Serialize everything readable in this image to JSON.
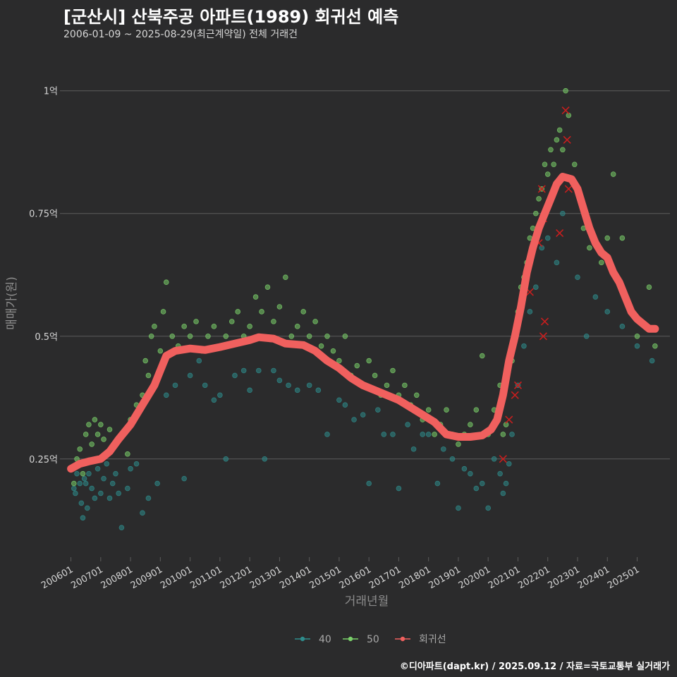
{
  "title": "[군산시] 산북주공 아파트(1989) 회귀선 예측",
  "subtitle": "2006-01-09 ~ 2025-08-29(최근계약일) 전체 거래건",
  "caption": "©디아파트(dapt.kr) / 2025.09.12 / 자료=국토교통부 실거래가",
  "colors": {
    "background": "#2b2b2c",
    "grid": "#5c5c5c",
    "series_40": "#2e8c8c",
    "series_50": "#7ad06a",
    "regression": "#f0605e",
    "highlight_x": "#c81e1e"
  },
  "chart_data": {
    "type": "scatter",
    "xlabel": "거래년월",
    "ylabel": "매매가(원)",
    "xlim": [
      2005.75,
      2026.1
    ],
    "ylim": [
      0.05,
      1.07
    ],
    "y_unit": "억",
    "grid": "horizontal",
    "legend_position": "bottom",
    "y_ticks": [
      {
        "value": 0.25,
        "label": "0.25억"
      },
      {
        "value": 0.5,
        "label": "0.5억"
      },
      {
        "value": 0.75,
        "label": "0.75억"
      },
      {
        "value": 1.0,
        "label": "1억"
      }
    ],
    "x_ticks": [
      "200601",
      "200701",
      "200801",
      "200901",
      "201001",
      "201101",
      "201201",
      "201301",
      "201401",
      "201501",
      "201601",
      "201701",
      "201801",
      "201901",
      "202001",
      "202101",
      "202201",
      "202301",
      "202401",
      "202501"
    ],
    "series": [
      {
        "name": "40",
        "type": "scatter",
        "points": [
          [
            2006.1,
            0.19
          ],
          [
            2006.15,
            0.18
          ],
          [
            2006.2,
            0.22
          ],
          [
            2006.3,
            0.2
          ],
          [
            2006.35,
            0.16
          ],
          [
            2006.4,
            0.13
          ],
          [
            2006.45,
            0.21
          ],
          [
            2006.5,
            0.2
          ],
          [
            2006.55,
            0.15
          ],
          [
            2006.6,
            0.22
          ],
          [
            2006.7,
            0.19
          ],
          [
            2006.8,
            0.17
          ],
          [
            2006.9,
            0.23
          ],
          [
            2007.0,
            0.18
          ],
          [
            2007.1,
            0.21
          ],
          [
            2007.2,
            0.24
          ],
          [
            2007.3,
            0.17
          ],
          [
            2007.4,
            0.2
          ],
          [
            2007.5,
            0.22
          ],
          [
            2007.6,
            0.18
          ],
          [
            2007.7,
            0.11
          ],
          [
            2007.9,
            0.19
          ],
          [
            2008.0,
            0.23
          ],
          [
            2008.2,
            0.24
          ],
          [
            2008.4,
            0.14
          ],
          [
            2008.6,
            0.17
          ],
          [
            2008.9,
            0.2
          ],
          [
            2009.2,
            0.38
          ],
          [
            2009.5,
            0.4
          ],
          [
            2009.8,
            0.21
          ],
          [
            2010.0,
            0.42
          ],
          [
            2010.3,
            0.45
          ],
          [
            2010.5,
            0.4
          ],
          [
            2010.8,
            0.37
          ],
          [
            2011.0,
            0.38
          ],
          [
            2011.2,
            0.25
          ],
          [
            2011.5,
            0.42
          ],
          [
            2011.8,
            0.43
          ],
          [
            2012.0,
            0.39
          ],
          [
            2012.3,
            0.43
          ],
          [
            2012.5,
            0.25
          ],
          [
            2012.8,
            0.43
          ],
          [
            2013.0,
            0.41
          ],
          [
            2013.3,
            0.4
          ],
          [
            2013.6,
            0.39
          ],
          [
            2014.0,
            0.4
          ],
          [
            2014.3,
            0.39
          ],
          [
            2014.6,
            0.3
          ],
          [
            2015.0,
            0.37
          ],
          [
            2015.2,
            0.36
          ],
          [
            2015.5,
            0.33
          ],
          [
            2015.8,
            0.34
          ],
          [
            2016.0,
            0.2
          ],
          [
            2016.3,
            0.35
          ],
          [
            2016.5,
            0.3
          ],
          [
            2016.8,
            0.3
          ],
          [
            2017.0,
            0.19
          ],
          [
            2017.3,
            0.32
          ],
          [
            2017.5,
            0.27
          ],
          [
            2017.8,
            0.3
          ],
          [
            2018.0,
            0.3
          ],
          [
            2018.3,
            0.2
          ],
          [
            2018.5,
            0.27
          ],
          [
            2018.8,
            0.25
          ],
          [
            2019.0,
            0.15
          ],
          [
            2019.2,
            0.23
          ],
          [
            2019.4,
            0.22
          ],
          [
            2019.6,
            0.19
          ],
          [
            2019.8,
            0.2
          ],
          [
            2020.0,
            0.15
          ],
          [
            2020.2,
            0.25
          ],
          [
            2020.4,
            0.22
          ],
          [
            2020.5,
            0.18
          ],
          [
            2020.6,
            0.2
          ],
          [
            2020.7,
            0.24
          ],
          [
            2020.8,
            0.3
          ],
          [
            2021.0,
            0.4
          ],
          [
            2021.2,
            0.48
          ],
          [
            2021.4,
            0.55
          ],
          [
            2021.6,
            0.6
          ],
          [
            2021.8,
            0.68
          ],
          [
            2022.0,
            0.7
          ],
          [
            2022.3,
            0.65
          ],
          [
            2022.5,
            0.75
          ],
          [
            2022.8,
            0.82
          ],
          [
            2023.0,
            0.62
          ],
          [
            2023.3,
            0.5
          ],
          [
            2023.6,
            0.58
          ],
          [
            2024.0,
            0.55
          ],
          [
            2024.5,
            0.52
          ],
          [
            2025.0,
            0.48
          ],
          [
            2025.5,
            0.45
          ]
        ]
      },
      {
        "name": "50",
        "type": "scatter",
        "points": [
          [
            2006.1,
            0.2
          ],
          [
            2006.2,
            0.25
          ],
          [
            2006.3,
            0.27
          ],
          [
            2006.4,
            0.22
          ],
          [
            2006.5,
            0.3
          ],
          [
            2006.6,
            0.32
          ],
          [
            2006.7,
            0.28
          ],
          [
            2006.8,
            0.33
          ],
          [
            2006.9,
            0.3
          ],
          [
            2007.0,
            0.32
          ],
          [
            2007.1,
            0.29
          ],
          [
            2007.2,
            0.26
          ],
          [
            2007.3,
            0.31
          ],
          [
            2007.5,
            0.28
          ],
          [
            2007.7,
            0.3
          ],
          [
            2007.9,
            0.26
          ],
          [
            2008.0,
            0.33
          ],
          [
            2008.2,
            0.36
          ],
          [
            2008.4,
            0.38
          ],
          [
            2008.5,
            0.45
          ],
          [
            2008.6,
            0.42
          ],
          [
            2008.7,
            0.5
          ],
          [
            2008.8,
            0.52
          ],
          [
            2009.0,
            0.47
          ],
          [
            2009.1,
            0.55
          ],
          [
            2009.2,
            0.61
          ],
          [
            2009.4,
            0.5
          ],
          [
            2009.6,
            0.48
          ],
          [
            2009.8,
            0.52
          ],
          [
            2010.0,
            0.5
          ],
          [
            2010.2,
            0.53
          ],
          [
            2010.4,
            0.47
          ],
          [
            2010.6,
            0.5
          ],
          [
            2010.8,
            0.52
          ],
          [
            2011.0,
            0.48
          ],
          [
            2011.2,
            0.5
          ],
          [
            2011.4,
            0.53
          ],
          [
            2011.6,
            0.55
          ],
          [
            2011.8,
            0.5
          ],
          [
            2012.0,
            0.52
          ],
          [
            2012.2,
            0.58
          ],
          [
            2012.4,
            0.55
          ],
          [
            2012.6,
            0.6
          ],
          [
            2012.8,
            0.53
          ],
          [
            2013.0,
            0.56
          ],
          [
            2013.2,
            0.62
          ],
          [
            2013.4,
            0.5
          ],
          [
            2013.6,
            0.52
          ],
          [
            2013.8,
            0.55
          ],
          [
            2014.0,
            0.5
          ],
          [
            2014.2,
            0.53
          ],
          [
            2014.4,
            0.48
          ],
          [
            2014.6,
            0.5
          ],
          [
            2014.8,
            0.47
          ],
          [
            2015.0,
            0.45
          ],
          [
            2015.2,
            0.5
          ],
          [
            2015.4,
            0.42
          ],
          [
            2015.6,
            0.44
          ],
          [
            2015.8,
            0.4
          ],
          [
            2016.0,
            0.45
          ],
          [
            2016.2,
            0.42
          ],
          [
            2016.4,
            0.38
          ],
          [
            2016.6,
            0.4
          ],
          [
            2016.8,
            0.43
          ],
          [
            2017.0,
            0.38
          ],
          [
            2017.2,
            0.4
          ],
          [
            2017.4,
            0.36
          ],
          [
            2017.6,
            0.38
          ],
          [
            2017.8,
            0.33
          ],
          [
            2018.0,
            0.35
          ],
          [
            2018.2,
            0.3
          ],
          [
            2018.4,
            0.32
          ],
          [
            2018.6,
            0.35
          ],
          [
            2018.8,
            0.3
          ],
          [
            2019.0,
            0.28
          ],
          [
            2019.2,
            0.3
          ],
          [
            2019.4,
            0.32
          ],
          [
            2019.6,
            0.35
          ],
          [
            2019.8,
            0.46
          ],
          [
            2020.0,
            0.3
          ],
          [
            2020.2,
            0.35
          ],
          [
            2020.4,
            0.4
          ],
          [
            2020.5,
            0.3
          ],
          [
            2020.6,
            0.32
          ],
          [
            2020.8,
            0.45
          ],
          [
            2020.9,
            0.5
          ],
          [
            2021.0,
            0.55
          ],
          [
            2021.1,
            0.6
          ],
          [
            2021.2,
            0.62
          ],
          [
            2021.3,
            0.65
          ],
          [
            2021.4,
            0.7
          ],
          [
            2021.5,
            0.72
          ],
          [
            2021.6,
            0.75
          ],
          [
            2021.7,
            0.78
          ],
          [
            2021.8,
            0.8
          ],
          [
            2021.9,
            0.85
          ],
          [
            2022.0,
            0.83
          ],
          [
            2022.1,
            0.88
          ],
          [
            2022.2,
            0.85
          ],
          [
            2022.3,
            0.9
          ],
          [
            2022.4,
            0.92
          ],
          [
            2022.5,
            0.88
          ],
          [
            2022.6,
            1.0
          ],
          [
            2022.7,
            0.95
          ],
          [
            2022.9,
            0.85
          ],
          [
            2023.0,
            0.8
          ],
          [
            2023.2,
            0.72
          ],
          [
            2023.4,
            0.68
          ],
          [
            2023.8,
            0.65
          ],
          [
            2024.0,
            0.7
          ],
          [
            2024.2,
            0.83
          ],
          [
            2024.5,
            0.7
          ],
          [
            2025.0,
            0.5
          ],
          [
            2025.4,
            0.6
          ],
          [
            2025.6,
            0.48
          ]
        ]
      },
      {
        "name": "회귀선",
        "type": "line",
        "points": [
          [
            2006.0,
            0.23
          ],
          [
            2006.3,
            0.24
          ],
          [
            2006.6,
            0.245
          ],
          [
            2007.0,
            0.25
          ],
          [
            2007.3,
            0.265
          ],
          [
            2007.6,
            0.29
          ],
          [
            2008.0,
            0.32
          ],
          [
            2008.4,
            0.36
          ],
          [
            2008.8,
            0.4
          ],
          [
            2009.0,
            0.43
          ],
          [
            2009.2,
            0.46
          ],
          [
            2009.5,
            0.47
          ],
          [
            2010.0,
            0.475
          ],
          [
            2010.5,
            0.472
          ],
          [
            2011.0,
            0.478
          ],
          [
            2011.5,
            0.485
          ],
          [
            2012.0,
            0.492
          ],
          [
            2012.3,
            0.498
          ],
          [
            2012.8,
            0.495
          ],
          [
            2013.2,
            0.485
          ],
          [
            2013.8,
            0.482
          ],
          [
            2014.2,
            0.47
          ],
          [
            2014.6,
            0.45
          ],
          [
            2015.0,
            0.435
          ],
          [
            2015.4,
            0.415
          ],
          [
            2015.8,
            0.4
          ],
          [
            2016.2,
            0.39
          ],
          [
            2016.6,
            0.38
          ],
          [
            2017.0,
            0.37
          ],
          [
            2017.4,
            0.355
          ],
          [
            2017.8,
            0.34
          ],
          [
            2018.2,
            0.325
          ],
          [
            2018.6,
            0.3
          ],
          [
            2019.0,
            0.295
          ],
          [
            2019.4,
            0.295
          ],
          [
            2019.8,
            0.298
          ],
          [
            2020.1,
            0.31
          ],
          [
            2020.3,
            0.33
          ],
          [
            2020.5,
            0.38
          ],
          [
            2020.7,
            0.45
          ],
          [
            2020.9,
            0.5
          ],
          [
            2021.1,
            0.56
          ],
          [
            2021.3,
            0.63
          ],
          [
            2021.5,
            0.68
          ],
          [
            2021.7,
            0.72
          ],
          [
            2021.9,
            0.75
          ],
          [
            2022.1,
            0.78
          ],
          [
            2022.3,
            0.81
          ],
          [
            2022.5,
            0.825
          ],
          [
            2022.8,
            0.82
          ],
          [
            2023.0,
            0.8
          ],
          [
            2023.2,
            0.76
          ],
          [
            2023.4,
            0.72
          ],
          [
            2023.6,
            0.69
          ],
          [
            2023.8,
            0.67
          ],
          [
            2024.0,
            0.66
          ],
          [
            2024.2,
            0.63
          ],
          [
            2024.4,
            0.61
          ],
          [
            2024.6,
            0.58
          ],
          [
            2024.8,
            0.55
          ],
          [
            2025.0,
            0.535
          ],
          [
            2025.2,
            0.525
          ],
          [
            2025.4,
            0.515
          ],
          [
            2025.6,
            0.515
          ]
        ]
      }
    ],
    "highlight_points": [
      [
        2020.5,
        0.25
      ],
      [
        2020.7,
        0.33
      ],
      [
        2020.9,
        0.38
      ],
      [
        2021.0,
        0.4
      ],
      [
        2021.4,
        0.59
      ],
      [
        2021.7,
        0.69
      ],
      [
        2021.8,
        0.8
      ],
      [
        2021.85,
        0.74
      ],
      [
        2021.9,
        0.53
      ],
      [
        2022.4,
        0.71
      ],
      [
        2022.6,
        0.96
      ],
      [
        2022.65,
        0.9
      ],
      [
        2022.7,
        0.8
      ],
      [
        2021.85,
        0.5
      ]
    ]
  }
}
